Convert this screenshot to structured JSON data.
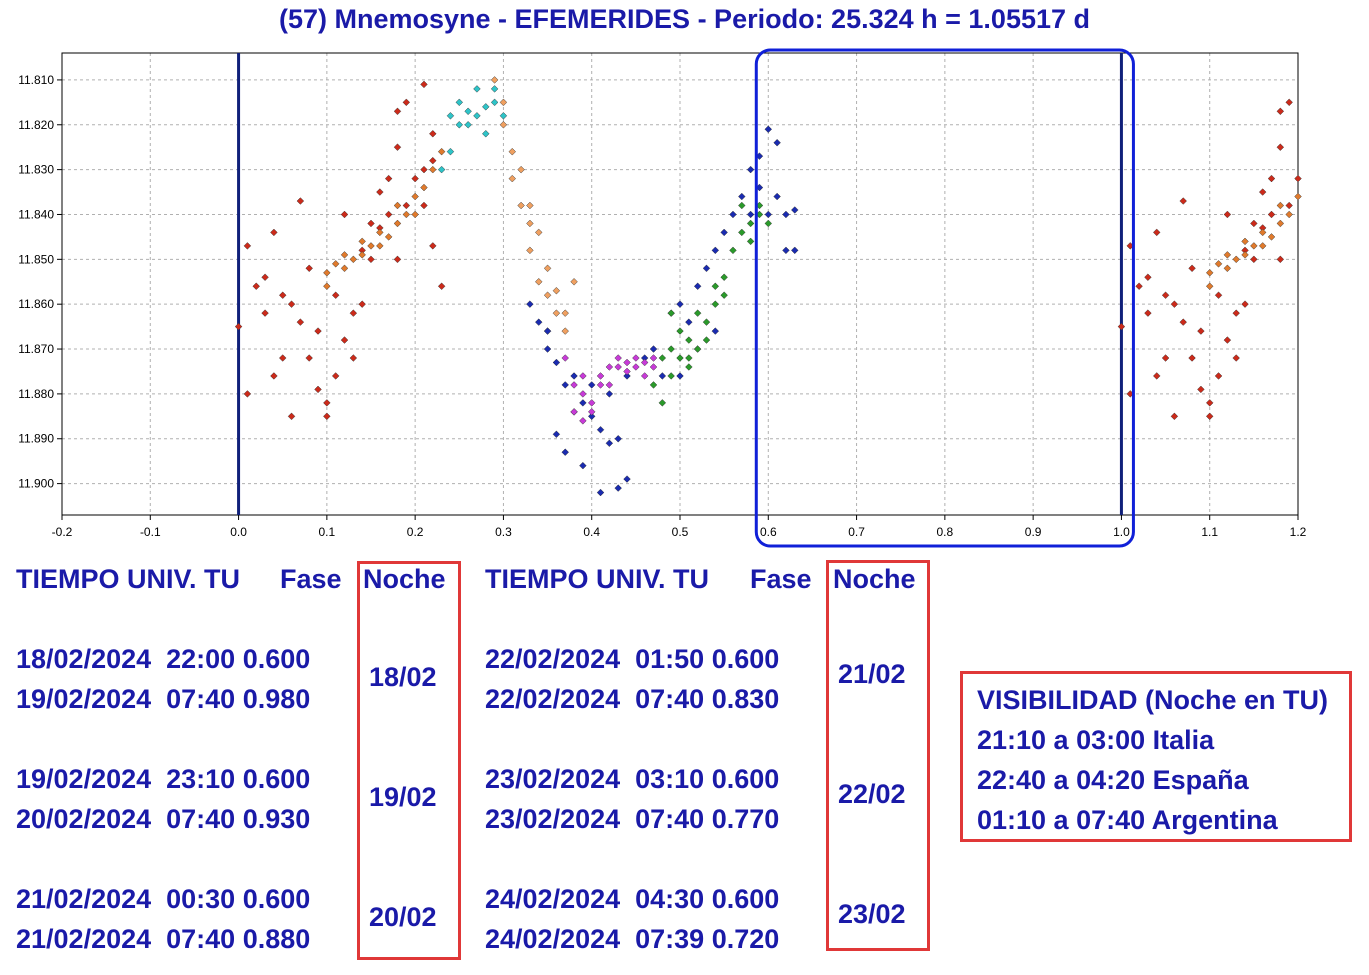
{
  "title": "(57) Mnemosyne - EFEMERIDES - Periodo: 25.324 h = 1.05517 d",
  "chart_data": {
    "type": "scatter",
    "x_ticks": [
      "-0.2",
      "-0.1",
      "0.0",
      "0.1",
      "0.2",
      "0.3",
      "0.4",
      "0.5",
      "0.6",
      "0.7",
      "0.8",
      "0.9",
      "1.0",
      "1.1",
      "1.2"
    ],
    "y_ticks": [
      "11.810",
      "11.820",
      "11.830",
      "11.840",
      "11.850",
      "11.860",
      "11.870",
      "11.880",
      "11.890",
      "11.900"
    ],
    "xlim": [
      -0.2,
      1.2
    ],
    "ylim": [
      11.907,
      11.804
    ],
    "y_inverted": true,
    "grid": true,
    "vertical_lines": [
      0.0,
      1.0
    ],
    "highlight_phase_range": [
      0.6,
      1.0
    ],
    "series": [
      {
        "color": "#cc2a1a",
        "points": [
          [
            0.0,
            11.865
          ],
          [
            0.01,
            11.847
          ],
          [
            0.01,
            11.88
          ],
          [
            0.02,
            11.856
          ],
          [
            0.03,
            11.854
          ],
          [
            0.03,
            11.862
          ],
          [
            0.04,
            11.844
          ],
          [
            0.04,
            11.876
          ],
          [
            0.05,
            11.858
          ],
          [
            0.05,
            11.872
          ],
          [
            0.06,
            11.86
          ],
          [
            0.06,
            11.885
          ],
          [
            0.07,
            11.837
          ],
          [
            0.07,
            11.864
          ],
          [
            0.08,
            11.852
          ],
          [
            0.08,
            11.872
          ],
          [
            0.09,
            11.866
          ],
          [
            0.09,
            11.879
          ],
          [
            0.1,
            11.882
          ],
          [
            0.1,
            11.885
          ],
          [
            0.11,
            11.858
          ],
          [
            0.11,
            11.876
          ],
          [
            0.12,
            11.84
          ],
          [
            0.12,
            11.868
          ],
          [
            0.13,
            11.862
          ],
          [
            0.13,
            11.872
          ],
          [
            0.14,
            11.848
          ],
          [
            0.14,
            11.86
          ],
          [
            0.15,
            11.842
          ],
          [
            0.16,
            11.835
          ],
          [
            0.17,
            11.832
          ],
          [
            0.18,
            11.825
          ],
          [
            0.18,
            11.85
          ],
          [
            0.19,
            11.838
          ],
          [
            0.2,
            11.832
          ],
          [
            0.21,
            11.83
          ],
          [
            0.21,
            11.838
          ],
          [
            0.22,
            11.828
          ],
          [
            0.22,
            11.847
          ],
          [
            0.23,
            11.856
          ],
          [
            0.18,
            11.817
          ],
          [
            0.19,
            11.815
          ],
          [
            0.21,
            11.811
          ],
          [
            0.22,
            11.822
          ],
          [
            0.17,
            11.84
          ],
          [
            0.15,
            11.85
          ],
          [
            0.16,
            11.843
          ]
        ]
      },
      {
        "color": "#e07a2c",
        "points": [
          [
            0.1,
            11.853
          ],
          [
            0.11,
            11.851
          ],
          [
            0.12,
            11.849
          ],
          [
            0.13,
            11.85
          ],
          [
            0.14,
            11.846
          ],
          [
            0.15,
            11.847
          ],
          [
            0.16,
            11.844
          ],
          [
            0.17,
            11.845
          ],
          [
            0.18,
            11.842
          ],
          [
            0.19,
            11.84
          ],
          [
            0.2,
            11.836
          ],
          [
            0.21,
            11.834
          ],
          [
            0.22,
            11.83
          ],
          [
            0.23,
            11.826
          ],
          [
            0.1,
            11.856
          ],
          [
            0.12,
            11.852
          ],
          [
            0.14,
            11.849
          ],
          [
            0.16,
            11.847
          ],
          [
            0.18,
            11.838
          ],
          [
            0.2,
            11.84
          ]
        ]
      },
      {
        "color": "#2ec4c8",
        "points": [
          [
            0.23,
            11.83
          ],
          [
            0.24,
            11.826
          ],
          [
            0.24,
            11.818
          ],
          [
            0.25,
            11.82
          ],
          [
            0.25,
            11.815
          ],
          [
            0.26,
            11.817
          ],
          [
            0.26,
            11.82
          ],
          [
            0.27,
            11.818
          ],
          [
            0.27,
            11.812
          ],
          [
            0.28,
            11.816
          ],
          [
            0.28,
            11.822
          ],
          [
            0.29,
            11.815
          ],
          [
            0.29,
            11.812
          ],
          [
            0.3,
            11.818
          ]
        ]
      },
      {
        "color": "#f0a060",
        "points": [
          [
            0.29,
            11.81
          ],
          [
            0.3,
            11.815
          ],
          [
            0.3,
            11.82
          ],
          [
            0.31,
            11.826
          ],
          [
            0.31,
            11.832
          ],
          [
            0.32,
            11.83
          ],
          [
            0.32,
            11.838
          ],
          [
            0.33,
            11.842
          ],
          [
            0.33,
            11.848
          ],
          [
            0.34,
            11.844
          ],
          [
            0.34,
            11.855
          ],
          [
            0.35,
            11.858
          ],
          [
            0.35,
            11.866
          ],
          [
            0.36,
            11.862
          ],
          [
            0.36,
            11.857
          ],
          [
            0.37,
            11.862
          ],
          [
            0.37,
            11.866
          ],
          [
            0.38,
            11.855
          ],
          [
            0.35,
            11.852
          ],
          [
            0.33,
            11.838
          ]
        ]
      },
      {
        "color": "#1a2bb0",
        "points": [
          [
            0.33,
            11.86
          ],
          [
            0.34,
            11.864
          ],
          [
            0.35,
            11.87
          ],
          [
            0.35,
            11.866
          ],
          [
            0.36,
            11.873
          ],
          [
            0.36,
            11.889
          ],
          [
            0.37,
            11.878
          ],
          [
            0.37,
            11.893
          ],
          [
            0.38,
            11.884
          ],
          [
            0.38,
            11.876
          ],
          [
            0.39,
            11.882
          ],
          [
            0.39,
            11.896
          ],
          [
            0.4,
            11.878
          ],
          [
            0.4,
            11.885
          ],
          [
            0.41,
            11.888
          ],
          [
            0.41,
            11.902
          ],
          [
            0.42,
            11.88
          ],
          [
            0.42,
            11.891
          ],
          [
            0.43,
            11.901
          ],
          [
            0.43,
            11.89
          ],
          [
            0.44,
            11.876
          ],
          [
            0.44,
            11.899
          ],
          [
            0.46,
            11.872
          ],
          [
            0.47,
            11.87
          ],
          [
            0.48,
            11.876
          ],
          [
            0.49,
            11.862
          ],
          [
            0.5,
            11.86
          ],
          [
            0.51,
            11.864
          ],
          [
            0.52,
            11.856
          ],
          [
            0.53,
            11.852
          ],
          [
            0.54,
            11.848
          ],
          [
            0.55,
            11.844
          ],
          [
            0.56,
            11.84
          ],
          [
            0.57,
            11.836
          ],
          [
            0.58,
            11.84
          ],
          [
            0.58,
            11.83
          ],
          [
            0.59,
            11.827
          ],
          [
            0.59,
            11.834
          ],
          [
            0.6,
            11.821
          ],
          [
            0.6,
            11.84
          ],
          [
            0.61,
            11.824
          ],
          [
            0.61,
            11.836
          ],
          [
            0.62,
            11.84
          ],
          [
            0.62,
            11.848
          ],
          [
            0.63,
            11.848
          ],
          [
            0.63,
            11.839
          ],
          [
            0.54,
            11.866
          ],
          [
            0.5,
            11.876
          ],
          [
            0.52,
            11.87
          ]
        ]
      },
      {
        "color": "#c83ad8",
        "points": [
          [
            0.37,
            11.872
          ],
          [
            0.38,
            11.878
          ],
          [
            0.39,
            11.876
          ],
          [
            0.39,
            11.88
          ],
          [
            0.4,
            11.882
          ],
          [
            0.4,
            11.884
          ],
          [
            0.41,
            11.878
          ],
          [
            0.41,
            11.876
          ],
          [
            0.42,
            11.874
          ],
          [
            0.42,
            11.878
          ],
          [
            0.43,
            11.874
          ],
          [
            0.43,
            11.872
          ],
          [
            0.44,
            11.873
          ],
          [
            0.44,
            11.875
          ],
          [
            0.45,
            11.872
          ],
          [
            0.45,
            11.874
          ],
          [
            0.46,
            11.873
          ],
          [
            0.46,
            11.876
          ],
          [
            0.47,
            11.874
          ],
          [
            0.47,
            11.872
          ],
          [
            0.38,
            11.884
          ],
          [
            0.39,
            11.886
          ]
        ]
      },
      {
        "color": "#2a9a2a",
        "points": [
          [
            0.47,
            11.878
          ],
          [
            0.48,
            11.872
          ],
          [
            0.48,
            11.882
          ],
          [
            0.49,
            11.87
          ],
          [
            0.49,
            11.876
          ],
          [
            0.5,
            11.872
          ],
          [
            0.5,
            11.866
          ],
          [
            0.51,
            11.868
          ],
          [
            0.51,
            11.874
          ],
          [
            0.52,
            11.87
          ],
          [
            0.52,
            11.862
          ],
          [
            0.53,
            11.864
          ],
          [
            0.53,
            11.868
          ],
          [
            0.54,
            11.86
          ],
          [
            0.54,
            11.856
          ],
          [
            0.55,
            11.854
          ],
          [
            0.55,
            11.858
          ],
          [
            0.56,
            11.848
          ],
          [
            0.57,
            11.844
          ],
          [
            0.57,
            11.838
          ],
          [
            0.58,
            11.846
          ],
          [
            0.58,
            11.842
          ],
          [
            0.59,
            11.838
          ],
          [
            0.59,
            11.84
          ],
          [
            0.6,
            11.842
          ],
          [
            0.49,
            11.862
          ],
          [
            0.51,
            11.872
          ]
        ]
      },
      {
        "color": "#cc2a1a",
        "points": [
          [
            1.0,
            11.865
          ],
          [
            1.01,
            11.847
          ],
          [
            1.01,
            11.88
          ],
          [
            1.02,
            11.856
          ],
          [
            1.03,
            11.854
          ],
          [
            1.03,
            11.862
          ],
          [
            1.04,
            11.844
          ],
          [
            1.04,
            11.876
          ],
          [
            1.05,
            11.858
          ],
          [
            1.05,
            11.872
          ],
          [
            1.06,
            11.86
          ],
          [
            1.06,
            11.885
          ],
          [
            1.07,
            11.837
          ],
          [
            1.07,
            11.864
          ],
          [
            1.08,
            11.852
          ],
          [
            1.08,
            11.872
          ],
          [
            1.09,
            11.866
          ],
          [
            1.09,
            11.879
          ],
          [
            1.1,
            11.882
          ],
          [
            1.1,
            11.885
          ],
          [
            1.11,
            11.858
          ],
          [
            1.11,
            11.876
          ],
          [
            1.12,
            11.84
          ],
          [
            1.12,
            11.868
          ],
          [
            1.13,
            11.862
          ],
          [
            1.13,
            11.872
          ],
          [
            1.14,
            11.848
          ],
          [
            1.14,
            11.86
          ],
          [
            1.15,
            11.842
          ],
          [
            1.16,
            11.835
          ],
          [
            1.17,
            11.832
          ],
          [
            1.18,
            11.825
          ],
          [
            1.18,
            11.85
          ],
          [
            1.19,
            11.838
          ],
          [
            1.2,
            11.832
          ],
          [
            1.18,
            11.817
          ],
          [
            1.19,
            11.815
          ],
          [
            1.17,
            11.84
          ],
          [
            1.15,
            11.85
          ],
          [
            1.16,
            11.843
          ]
        ]
      },
      {
        "color": "#e07a2c",
        "points": [
          [
            1.1,
            11.853
          ],
          [
            1.11,
            11.851
          ],
          [
            1.12,
            11.849
          ],
          [
            1.13,
            11.85
          ],
          [
            1.14,
            11.846
          ],
          [
            1.15,
            11.847
          ],
          [
            1.16,
            11.844
          ],
          [
            1.17,
            11.845
          ],
          [
            1.18,
            11.842
          ],
          [
            1.19,
            11.84
          ],
          [
            1.2,
            11.836
          ],
          [
            1.1,
            11.856
          ],
          [
            1.12,
            11.852
          ],
          [
            1.14,
            11.849
          ],
          [
            1.16,
            11.847
          ],
          [
            1.18,
            11.838
          ]
        ]
      }
    ]
  },
  "table_left": {
    "header_time": "TIEMPO UNIV. TU",
    "header_phase": "Fase",
    "header_night": "Noche",
    "rows": [
      "18/02/2024  22:00 0.600",
      "19/02/2024  07:40 0.980",
      "19/02/2024  23:10 0.600",
      "20/02/2024  07:40 0.930",
      "21/02/2024  00:30 0.600",
      "21/02/2024  07:40 0.880"
    ],
    "nights": [
      "18/02",
      "19/02",
      "20/02"
    ]
  },
  "table_right": {
    "header_time": "TIEMPO UNIV. TU",
    "header_phase": "Fase",
    "header_night": "Noche",
    "rows": [
      "22/02/2024  01:50 0.600",
      "22/02/2024  07:40 0.830",
      "23/02/2024  03:10 0.600",
      "23/02/2024  07:40 0.770",
      "24/02/2024  04:30 0.600",
      "24/02/2024  07:39 0.720"
    ],
    "nights": [
      "21/02",
      "22/02",
      "23/02"
    ]
  },
  "visibility": {
    "title": "VISIBILIDAD (Noche en TU)",
    "lines": [
      "21:10 a 03:00 Italia",
      "22:40 a 04:20 España",
      "01:10 a 07:40 Argentina"
    ]
  }
}
